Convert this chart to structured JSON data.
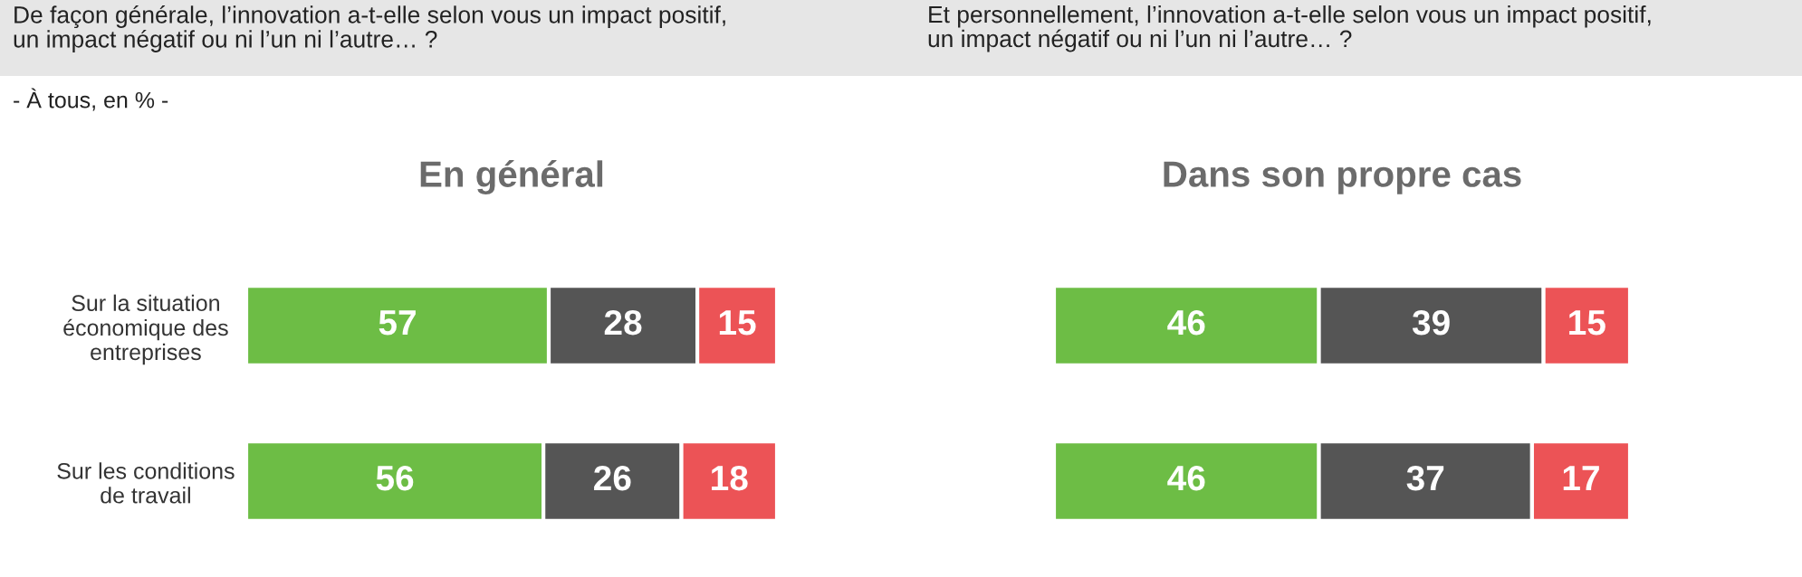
{
  "chart_data": [
    {
      "type": "bar",
      "orientation": "horizontal",
      "stacked": true,
      "title": "En général",
      "subtitle": "De façon générale, l’innovation a-t-elle selon vous un impact positif,\nun impact négatif ou ni l’un ni l’autre… ?",
      "annotations": [
        "- À tous, en % -"
      ],
      "categories": [
        "Sur la situation\néconomique des\nentreprises",
        "Sur les conditions\nde travail"
      ],
      "tick_labels": "y",
      "data_labels": true,
      "series": [
        {
          "color": "#6dbd45",
          "values": [
            57,
            56
          ]
        },
        {
          "color": "#555555",
          "values": [
            28,
            26
          ]
        },
        {
          "color": "#ec5356",
          "values": [
            15,
            18
          ]
        }
      ]
    },
    {
      "type": "bar",
      "orientation": "horizontal",
      "stacked": true,
      "title": "Dans son propre cas",
      "subtitle": "Et personnellement, l’innovation a-t-elle selon vous un impact positif,\nun impact négatif ou ni l’un ni l’autre… ?",
      "categories": [
        null,
        null
      ],
      "tick_labels": false,
      "data_labels": true,
      "series": [
        {
          "color": "#6dbd45",
          "values": [
            46,
            46
          ]
        },
        {
          "color": "#555555",
          "values": [
            39,
            37
          ]
        },
        {
          "color": "#ec5356",
          "values": [
            15,
            17
          ]
        }
      ]
    }
  ]
}
